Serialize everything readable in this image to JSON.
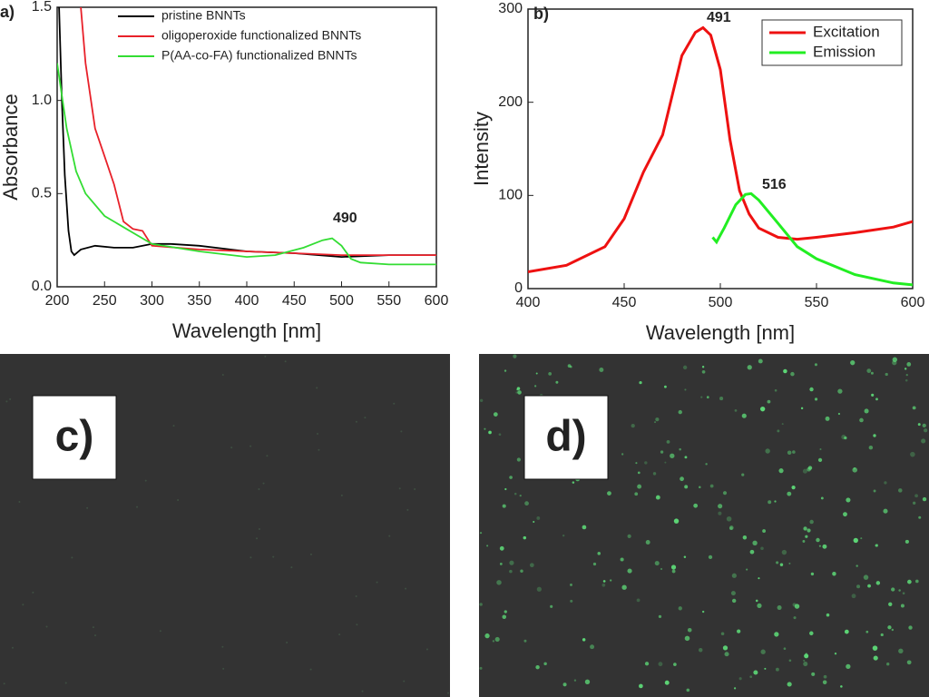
{
  "chart_data": [
    {
      "type": "line",
      "panel_label": "a)",
      "xlabel": "Wavelength [nm]",
      "ylabel": "Absorbance",
      "xlim": [
        200,
        600
      ],
      "xticks": [
        200,
        250,
        300,
        350,
        400,
        450,
        500,
        550,
        600
      ],
      "ylim": [
        0,
        1.5
      ],
      "yticks": [
        {
          "value": 0,
          "label": "0.0"
        },
        0.5,
        {
          "value": 1,
          "label": "1.0"
        },
        1.5
      ],
      "legend": "top-right",
      "legend_box": false,
      "annotations": [
        "490"
      ],
      "series": [
        {
          "name": "pristine BNNTs",
          "color": "#000000",
          "x": [
            202,
            205,
            208,
            212,
            215,
            218,
            225,
            240,
            260,
            280,
            300,
            320,
            350,
            400,
            450,
            500,
            550,
            600
          ],
          "values": [
            1.5,
            1.0,
            0.6,
            0.3,
            0.19,
            0.17,
            0.2,
            0.22,
            0.21,
            0.21,
            0.23,
            0.23,
            0.22,
            0.19,
            0.18,
            0.16,
            0.17,
            0.17
          ]
        },
        {
          "name": "oligoperoxide functionalized BNNTs",
          "color": "#e8212a",
          "x": [
            225,
            230,
            240,
            250,
            260,
            270,
            280,
            290,
            300,
            350,
            400,
            450,
            500,
            550,
            600
          ],
          "values": [
            1.5,
            1.2,
            0.85,
            0.7,
            0.55,
            0.35,
            0.31,
            0.3,
            0.22,
            0.2,
            0.19,
            0.18,
            0.17,
            0.17,
            0.17
          ]
        },
        {
          "name": "P(AA-co-FA)  functionalized BNNTs",
          "color": "#33dd33",
          "x": [
            200,
            210,
            220,
            230,
            250,
            270,
            300,
            350,
            400,
            430,
            460,
            480,
            490,
            500,
            510,
            520,
            550,
            600
          ],
          "values": [
            1.2,
            0.85,
            0.62,
            0.5,
            0.38,
            0.32,
            0.23,
            0.19,
            0.16,
            0.17,
            0.21,
            0.25,
            0.26,
            0.22,
            0.15,
            0.13,
            0.12,
            0.12
          ]
        }
      ]
    },
    {
      "type": "line",
      "panel_label": "b)",
      "xlabel": "Wavelength [nm]",
      "ylabel": "Intensity",
      "xlim": [
        400,
        600
      ],
      "xticks": [
        400,
        450,
        500,
        550,
        600
      ],
      "ylim": [
        0,
        300
      ],
      "yticks": [
        0,
        100,
        200,
        300
      ],
      "legend": "top-right",
      "legend_box": true,
      "annotations": [
        "491",
        "516"
      ],
      "series": [
        {
          "name": "Excitation",
          "color": "#ee1111",
          "x": [
            400,
            420,
            440,
            450,
            460,
            470,
            480,
            487,
            491,
            495,
            500,
            505,
            510,
            515,
            520,
            530,
            540,
            550,
            570,
            590,
            600
          ],
          "values": [
            18,
            25,
            45,
            75,
            125,
            165,
            250,
            275,
            280,
            272,
            235,
            160,
            105,
            80,
            65,
            55,
            53,
            55,
            60,
            66,
            72
          ]
        },
        {
          "name": "Emission",
          "color": "#22ee22",
          "x": [
            496,
            498,
            502,
            508,
            513,
            516,
            520,
            530,
            540,
            550,
            570,
            590,
            600
          ],
          "values": [
            55,
            50,
            65,
            90,
            101,
            102,
            95,
            70,
            45,
            32,
            15,
            6,
            4
          ]
        }
      ]
    }
  ],
  "images": [
    {
      "label": "c)"
    },
    {
      "label": "d)"
    }
  ]
}
